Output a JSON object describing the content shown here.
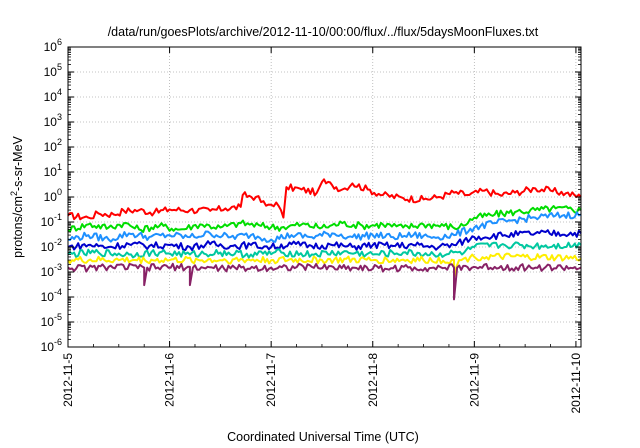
{
  "chart_data": {
    "type": "line",
    "title": "/data/run/goesPlots/archive/2012-11-10/00:00/flux/../flux/5daysMoonFluxes.txt",
    "xlabel": "Coordinated Universal Time (UTC)",
    "ylabel_base": "protons/cm",
    "ylabel_sup": "2",
    "ylabel_tail": "-s-sr-MeV",
    "y_scale": "log",
    "ylim": [
      1e-06,
      1000000.0
    ],
    "y_ticks": [
      {
        "exp": "-6"
      },
      {
        "exp": "-5"
      },
      {
        "exp": "-4"
      },
      {
        "exp": "-3"
      },
      {
        "exp": "-2"
      },
      {
        "exp": "-1"
      },
      {
        "exp": "0"
      },
      {
        "exp": "1"
      },
      {
        "exp": "2"
      },
      {
        "exp": "3"
      },
      {
        "exp": "4"
      },
      {
        "exp": "5"
      },
      {
        "exp": "6"
      }
    ],
    "y_tick_base": "10",
    "x_range_days": [
      0,
      5.05
    ],
    "x_tick_labels": [
      "2012-11-5",
      "2012-11-6",
      "2012-11-7",
      "2012-11-8",
      "2012-11-9",
      "2012-11-10"
    ],
    "grid": true,
    "x_unit": "days after 2012-11-05 00:00 UTC",
    "series": [
      {
        "color": "#ff0000",
        "points": [
          [
            0,
            0.18
          ],
          [
            0.2,
            0.15
          ],
          [
            0.3,
            0.22
          ],
          [
            0.45,
            0.2
          ],
          [
            0.55,
            0.28
          ],
          [
            0.7,
            0.3
          ],
          [
            0.85,
            0.24
          ],
          [
            1.0,
            0.32
          ],
          [
            1.2,
            0.3
          ],
          [
            1.4,
            0.28
          ],
          [
            1.55,
            0.35
          ],
          [
            1.7,
            0.4
          ],
          [
            1.72,
            1.2
          ],
          [
            1.85,
            1.0
          ],
          [
            1.95,
            0.45
          ],
          [
            2.05,
            0.6
          ],
          [
            2.12,
            0.15
          ],
          [
            2.15,
            2.5
          ],
          [
            2.3,
            2.0
          ],
          [
            2.45,
            1.5
          ],
          [
            2.5,
            4.0
          ],
          [
            2.6,
            3.0
          ],
          [
            2.7,
            2.0
          ],
          [
            2.8,
            3.5
          ],
          [
            2.95,
            2.0
          ],
          [
            3.1,
            1.2
          ],
          [
            3.3,
            0.9
          ],
          [
            3.5,
            0.8
          ],
          [
            3.65,
            1.0
          ],
          [
            3.8,
            1.5
          ],
          [
            3.95,
            1.2
          ],
          [
            4.1,
            1.8
          ],
          [
            4.25,
            1.2
          ],
          [
            4.4,
            1.5
          ],
          [
            4.6,
            2.2
          ],
          [
            4.75,
            1.8
          ],
          [
            4.9,
            1.4
          ],
          [
            5.05,
            1.0
          ]
        ]
      },
      {
        "color": "#00dd00",
        "points": [
          [
            0,
            0.05
          ],
          [
            0.2,
            0.08
          ],
          [
            0.4,
            0.06
          ],
          [
            0.55,
            0.09
          ],
          [
            0.7,
            0.05
          ],
          [
            0.9,
            0.07
          ],
          [
            1.1,
            0.05
          ],
          [
            1.3,
            0.08
          ],
          [
            1.5,
            0.06
          ],
          [
            1.7,
            0.09
          ],
          [
            1.9,
            0.07
          ],
          [
            2.1,
            0.06
          ],
          [
            2.3,
            0.08
          ],
          [
            2.5,
            0.06
          ],
          [
            2.7,
            0.09
          ],
          [
            2.9,
            0.07
          ],
          [
            3.1,
            0.08
          ],
          [
            3.3,
            0.06
          ],
          [
            3.5,
            0.08
          ],
          [
            3.7,
            0.07
          ],
          [
            3.85,
            0.06
          ],
          [
            4.0,
            0.15
          ],
          [
            4.2,
            0.2
          ],
          [
            4.4,
            0.25
          ],
          [
            4.6,
            0.3
          ],
          [
            4.8,
            0.35
          ],
          [
            5.05,
            0.3
          ]
        ]
      },
      {
        "color": "#1e90ff",
        "points": [
          [
            0,
            0.02
          ],
          [
            0.2,
            0.03
          ],
          [
            0.4,
            0.02
          ],
          [
            0.6,
            0.035
          ],
          [
            0.8,
            0.025
          ],
          [
            1.0,
            0.03
          ],
          [
            1.2,
            0.025
          ],
          [
            1.4,
            0.035
          ],
          [
            1.6,
            0.025
          ],
          [
            1.8,
            0.03
          ],
          [
            2.0,
            0.02
          ],
          [
            2.2,
            0.03
          ],
          [
            2.4,
            0.025
          ],
          [
            2.6,
            0.035
          ],
          [
            2.8,
            0.025
          ],
          [
            3.0,
            0.03
          ],
          [
            3.2,
            0.025
          ],
          [
            3.4,
            0.03
          ],
          [
            3.6,
            0.025
          ],
          [
            3.8,
            0.03
          ],
          [
            4.0,
            0.06
          ],
          [
            4.2,
            0.09
          ],
          [
            4.4,
            0.12
          ],
          [
            4.6,
            0.15
          ],
          [
            4.8,
            0.18
          ],
          [
            5.05,
            0.2
          ]
        ]
      },
      {
        "color": "#0000cc",
        "points": [
          [
            0,
            0.01
          ],
          [
            0.2,
            0.012
          ],
          [
            0.4,
            0.01
          ],
          [
            0.6,
            0.013
          ],
          [
            0.8,
            0.011
          ],
          [
            1.0,
            0.012
          ],
          [
            1.2,
            0.01
          ],
          [
            1.4,
            0.013
          ],
          [
            1.6,
            0.011
          ],
          [
            1.8,
            0.012
          ],
          [
            2.0,
            0.01
          ],
          [
            2.2,
            0.013
          ],
          [
            2.4,
            0.011
          ],
          [
            2.6,
            0.012
          ],
          [
            2.8,
            0.01
          ],
          [
            3.0,
            0.012
          ],
          [
            3.2,
            0.011
          ],
          [
            3.4,
            0.012
          ],
          [
            3.6,
            0.01
          ],
          [
            3.8,
            0.012
          ],
          [
            4.0,
            0.025
          ],
          [
            4.3,
            0.03
          ],
          [
            4.6,
            0.035
          ],
          [
            5.05,
            0.035
          ]
        ]
      },
      {
        "color": "#00c8a0",
        "points": [
          [
            0,
            0.005
          ],
          [
            0.3,
            0.006
          ],
          [
            0.6,
            0.005
          ],
          [
            0.9,
            0.006
          ],
          [
            1.2,
            0.005
          ],
          [
            1.5,
            0.006
          ],
          [
            1.8,
            0.005
          ],
          [
            2.1,
            0.006
          ],
          [
            2.4,
            0.005
          ],
          [
            2.7,
            0.006
          ],
          [
            3.0,
            0.005
          ],
          [
            3.3,
            0.006
          ],
          [
            3.6,
            0.005
          ],
          [
            3.9,
            0.006
          ],
          [
            4.0,
            0.01
          ],
          [
            4.3,
            0.012
          ],
          [
            4.6,
            0.011
          ],
          [
            5.05,
            0.012
          ]
        ]
      },
      {
        "color": "#ffee00",
        "points": [
          [
            0,
            0.003
          ],
          [
            0.5,
            0.003
          ],
          [
            1.0,
            0.003
          ],
          [
            1.5,
            0.003
          ],
          [
            2.0,
            0.003
          ],
          [
            2.5,
            0.003
          ],
          [
            3.0,
            0.003
          ],
          [
            3.5,
            0.003
          ],
          [
            3.8,
            0.003
          ],
          [
            3.8,
            0.0006
          ],
          [
            3.85,
            0.003
          ],
          [
            4.0,
            0.004
          ],
          [
            4.5,
            0.004
          ],
          [
            5.05,
            0.0035
          ]
        ]
      },
      {
        "color": "#882266",
        "points": [
          [
            0,
            0.0015
          ],
          [
            0.2,
            0.0014
          ],
          [
            0.4,
            0.0016
          ],
          [
            0.75,
            0.0015
          ],
          [
            0.75,
            0.0003
          ],
          [
            0.78,
            0.0015
          ],
          [
            1.2,
            0.0016
          ],
          [
            1.2,
            0.0003
          ],
          [
            1.23,
            0.0015
          ],
          [
            1.6,
            0.0014
          ],
          [
            2.0,
            0.0015
          ],
          [
            2.4,
            0.0016
          ],
          [
            2.8,
            0.0015
          ],
          [
            3.2,
            0.0014
          ],
          [
            3.6,
            0.0015
          ],
          [
            3.8,
            0.0015
          ],
          [
            3.8,
            8e-05
          ],
          [
            3.83,
            0.0015
          ],
          [
            4.2,
            0.0016
          ],
          [
            4.6,
            0.0015
          ],
          [
            5.05,
            0.0015
          ]
        ]
      }
    ]
  }
}
